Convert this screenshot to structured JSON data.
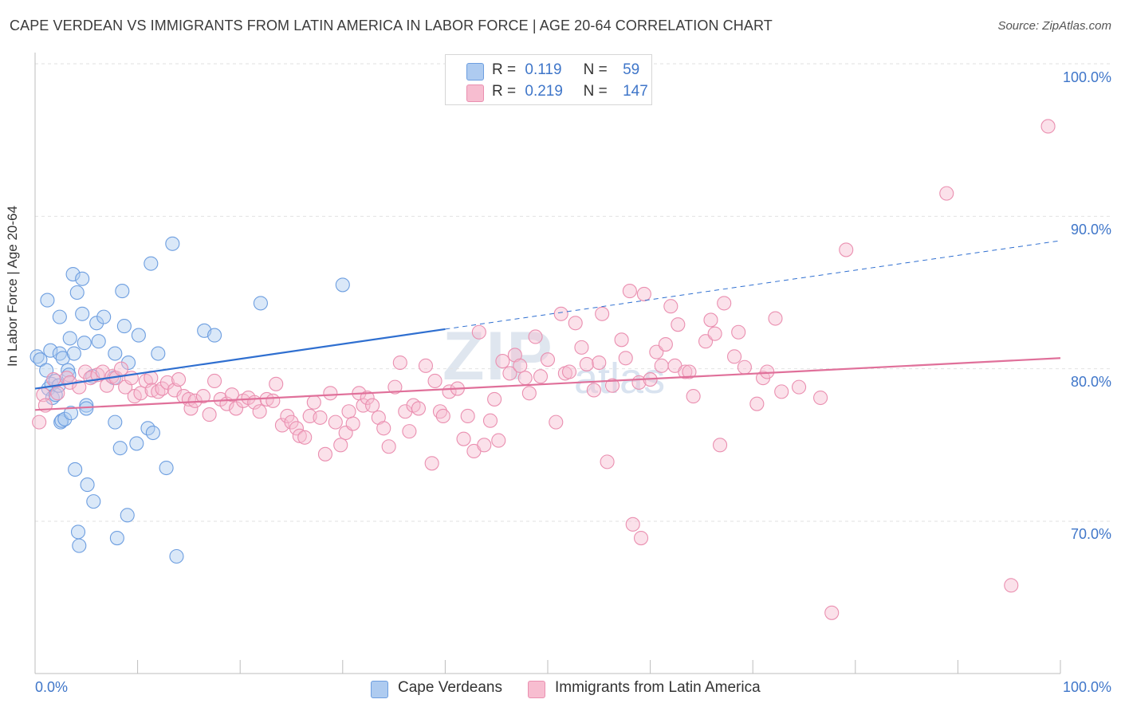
{
  "title": "CAPE VERDEAN VS IMMIGRANTS FROM LATIN AMERICA IN LABOR FORCE | AGE 20-64 CORRELATION CHART",
  "source": "Source: ZipAtlas.com",
  "legend": {
    "r_label": "R =",
    "n_label": "N =",
    "rows": [
      {
        "r": "0.119",
        "n": "59",
        "color": "#aecbf0"
      },
      {
        "r": "0.219",
        "n": "147",
        "color": "#f7bdd0"
      }
    ]
  },
  "watermark": {
    "zip": "ZIP",
    "atlas": "atlas"
  },
  "chart_data": {
    "type": "scatter",
    "title": "CAPE VERDEAN VS IMMIGRANTS FROM LATIN AMERICA IN LABOR FORCE | AGE 20-64 CORRELATION CHART",
    "xlabel": "",
    "ylabel": "In Labor Force | Age 20-64",
    "xlim": [
      0,
      100
    ],
    "ylim": [
      60.0,
      103.0
    ],
    "x_tick_labels": [
      "0.0%",
      "100.0%"
    ],
    "y_tick_labels": [
      "100.0%",
      "90.0%",
      "80.0%",
      "70.0%"
    ],
    "y_ticks": [
      100,
      90,
      80,
      70
    ],
    "grid": true,
    "legend_position": "bottom",
    "series": [
      {
        "name": "Cape Verdeans",
        "color": "#6d9ee0",
        "fill": "#aecbf0",
        "trend": {
          "x0": 0,
          "y0": 78.7,
          "x1": 40,
          "y1": 82.6,
          "dashed_to_x": 100,
          "dashed_y": 88.4,
          "color": "#2f6fd0"
        },
        "points": [
          [
            0.2,
            80.8
          ],
          [
            0.5,
            80.6
          ],
          [
            1.1,
            79.9
          ],
          [
            1.2,
            84.5
          ],
          [
            1.3,
            78.7
          ],
          [
            1.5,
            81.2
          ],
          [
            1.6,
            79.0
          ],
          [
            1.7,
            78.1
          ],
          [
            2.0,
            79.2
          ],
          [
            2.0,
            78.3
          ],
          [
            2.3,
            78.9
          ],
          [
            2.4,
            81.0
          ],
          [
            2.4,
            83.4
          ],
          [
            2.5,
            76.5
          ],
          [
            2.6,
            76.6
          ],
          [
            2.7,
            80.7
          ],
          [
            2.9,
            76.7
          ],
          [
            3.2,
            79.9
          ],
          [
            3.3,
            79.6
          ],
          [
            3.4,
            82.0
          ],
          [
            3.5,
            77.1
          ],
          [
            3.7,
            86.2
          ],
          [
            3.8,
            81.0
          ],
          [
            3.9,
            73.4
          ],
          [
            4.1,
            85.0
          ],
          [
            4.2,
            69.3
          ],
          [
            4.3,
            68.4
          ],
          [
            4.6,
            85.9
          ],
          [
            4.6,
            83.6
          ],
          [
            4.8,
            81.7
          ],
          [
            5.0,
            77.6
          ],
          [
            5.0,
            77.4
          ],
          [
            5.1,
            72.4
          ],
          [
            5.6,
            79.5
          ],
          [
            5.7,
            71.3
          ],
          [
            6.0,
            83.0
          ],
          [
            6.2,
            81.8
          ],
          [
            6.7,
            83.4
          ],
          [
            7.7,
            79.4
          ],
          [
            7.8,
            81.0
          ],
          [
            7.8,
            76.5
          ],
          [
            8.0,
            68.9
          ],
          [
            8.3,
            74.8
          ],
          [
            8.5,
            85.1
          ],
          [
            8.7,
            82.8
          ],
          [
            9.0,
            70.4
          ],
          [
            9.1,
            80.4
          ],
          [
            9.9,
            75.1
          ],
          [
            10.1,
            82.2
          ],
          [
            11.0,
            76.1
          ],
          [
            11.3,
            86.9
          ],
          [
            11.5,
            75.8
          ],
          [
            12.0,
            81.0
          ],
          [
            12.8,
            73.5
          ],
          [
            13.4,
            88.2
          ],
          [
            13.8,
            67.7
          ],
          [
            16.5,
            82.5
          ],
          [
            17.5,
            82.2
          ],
          [
            22.0,
            84.3
          ],
          [
            30.0,
            85.5
          ]
        ]
      },
      {
        "name": "Immigrants from Latin America",
        "color": "#ea8fb0",
        "fill": "#f7bdd0",
        "trend": {
          "x0": 0,
          "y0": 77.3,
          "x1": 100,
          "y1": 80.7,
          "color": "#e0709a"
        },
        "points": [
          [
            0.4,
            76.5
          ],
          [
            0.8,
            78.3
          ],
          [
            1.0,
            77.6
          ],
          [
            1.8,
            79.3
          ],
          [
            2.2,
            78.4
          ],
          [
            3.1,
            79.4
          ],
          [
            3.4,
            79.1
          ],
          [
            4.3,
            78.8
          ],
          [
            4.9,
            79.8
          ],
          [
            5.4,
            79.4
          ],
          [
            6.1,
            79.6
          ],
          [
            6.6,
            79.8
          ],
          [
            7.0,
            78.9
          ],
          [
            7.5,
            79.5
          ],
          [
            7.9,
            79.4
          ],
          [
            8.4,
            80.0
          ],
          [
            8.8,
            78.8
          ],
          [
            9.4,
            79.4
          ],
          [
            9.7,
            78.2
          ],
          [
            10.3,
            78.4
          ],
          [
            10.8,
            79.2
          ],
          [
            11.3,
            79.4
          ],
          [
            11.4,
            78.6
          ],
          [
            12.0,
            78.5
          ],
          [
            12.4,
            78.7
          ],
          [
            12.9,
            79.1
          ],
          [
            13.6,
            78.6
          ],
          [
            14.0,
            79.3
          ],
          [
            14.5,
            78.2
          ],
          [
            15.0,
            78.0
          ],
          [
            15.2,
            77.4
          ],
          [
            15.6,
            77.9
          ],
          [
            16.4,
            78.2
          ],
          [
            17.0,
            77.0
          ],
          [
            17.5,
            79.2
          ],
          [
            18.1,
            78.0
          ],
          [
            18.7,
            77.7
          ],
          [
            19.2,
            78.3
          ],
          [
            19.6,
            77.4
          ],
          [
            20.3,
            77.9
          ],
          [
            20.8,
            78.1
          ],
          [
            21.4,
            77.8
          ],
          [
            21.9,
            77.2
          ],
          [
            22.6,
            78.0
          ],
          [
            23.2,
            77.9
          ],
          [
            23.5,
            79.0
          ],
          [
            24.1,
            76.3
          ],
          [
            24.6,
            76.9
          ],
          [
            25.0,
            76.5
          ],
          [
            25.5,
            76.1
          ],
          [
            25.8,
            75.6
          ],
          [
            26.3,
            75.5
          ],
          [
            26.8,
            76.9
          ],
          [
            27.2,
            77.8
          ],
          [
            27.8,
            76.8
          ],
          [
            28.3,
            74.4
          ],
          [
            28.8,
            78.4
          ],
          [
            29.3,
            76.5
          ],
          [
            29.8,
            75.0
          ],
          [
            30.3,
            75.8
          ],
          [
            30.6,
            77.2
          ],
          [
            31.0,
            76.4
          ],
          [
            31.6,
            78.4
          ],
          [
            32.0,
            77.6
          ],
          [
            32.4,
            78.1
          ],
          [
            32.9,
            77.6
          ],
          [
            33.5,
            76.8
          ],
          [
            34.0,
            76.1
          ],
          [
            34.5,
            74.9
          ],
          [
            35.1,
            78.8
          ],
          [
            35.6,
            80.4
          ],
          [
            36.1,
            77.2
          ],
          [
            36.5,
            75.9
          ],
          [
            36.9,
            77.6
          ],
          [
            37.4,
            77.4
          ],
          [
            38.1,
            80.2
          ],
          [
            38.7,
            73.8
          ],
          [
            39.0,
            79.2
          ],
          [
            39.5,
            77.2
          ],
          [
            39.8,
            76.9
          ],
          [
            40.4,
            78.5
          ],
          [
            41.2,
            78.7
          ],
          [
            41.8,
            75.4
          ],
          [
            42.2,
            76.9
          ],
          [
            42.8,
            74.6
          ],
          [
            43.3,
            82.4
          ],
          [
            43.8,
            75.0
          ],
          [
            44.4,
            76.6
          ],
          [
            44.8,
            78.0
          ],
          [
            45.2,
            75.3
          ],
          [
            45.6,
            80.5
          ],
          [
            46.3,
            79.7
          ],
          [
            46.8,
            80.9
          ],
          [
            47.3,
            80.2
          ],
          [
            47.8,
            79.4
          ],
          [
            48.2,
            78.4
          ],
          [
            48.8,
            82.1
          ],
          [
            49.3,
            79.5
          ],
          [
            50.0,
            80.6
          ],
          [
            50.8,
            76.5
          ],
          [
            51.3,
            83.6
          ],
          [
            51.7,
            79.7
          ],
          [
            52.1,
            79.8
          ],
          [
            52.7,
            83.0
          ],
          [
            53.3,
            81.4
          ],
          [
            53.8,
            80.3
          ],
          [
            54.5,
            78.6
          ],
          [
            55.0,
            80.4
          ],
          [
            55.3,
            83.6
          ],
          [
            55.8,
            73.9
          ],
          [
            56.3,
            78.9
          ],
          [
            57.2,
            81.9
          ],
          [
            57.6,
            80.7
          ],
          [
            58.0,
            85.1
          ],
          [
            58.3,
            69.8
          ],
          [
            58.9,
            79.1
          ],
          [
            59.1,
            68.9
          ],
          [
            59.4,
            84.9
          ],
          [
            60.0,
            79.3
          ],
          [
            60.6,
            81.1
          ],
          [
            61.1,
            80.2
          ],
          [
            61.5,
            81.6
          ],
          [
            62.0,
            84.1
          ],
          [
            62.4,
            80.2
          ],
          [
            62.7,
            82.9
          ],
          [
            63.4,
            79.8
          ],
          [
            63.8,
            79.8
          ],
          [
            64.2,
            78.2
          ],
          [
            65.4,
            81.8
          ],
          [
            65.9,
            83.2
          ],
          [
            66.3,
            82.3
          ],
          [
            66.8,
            75.0
          ],
          [
            67.2,
            84.3
          ],
          [
            68.2,
            80.8
          ],
          [
            68.6,
            82.4
          ],
          [
            69.2,
            80.1
          ],
          [
            70.4,
            77.7
          ],
          [
            71.0,
            79.4
          ],
          [
            71.4,
            79.8
          ],
          [
            72.2,
            83.3
          ],
          [
            72.8,
            78.5
          ],
          [
            74.5,
            78.8
          ],
          [
            76.6,
            78.1
          ],
          [
            77.7,
            64.0
          ],
          [
            79.1,
            87.8
          ],
          [
            88.9,
            91.5
          ],
          [
            95.2,
            65.8
          ],
          [
            98.8,
            95.9
          ]
        ]
      }
    ]
  }
}
